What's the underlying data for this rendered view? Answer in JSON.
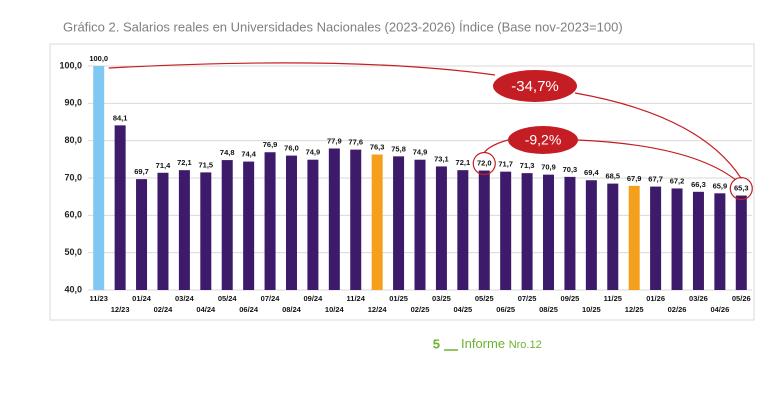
{
  "chart_data": {
    "type": "bar",
    "title": "Gráfico 2. Salarios reales en Universidades Nacionales (2023-2026) Índice (Base nov-2023=100)",
    "categories": [
      "11/23",
      "12/23",
      "01/24",
      "02/24",
      "03/24",
      "04/24",
      "05/24",
      "06/24",
      "07/24",
      "08/24",
      "09/24",
      "10/24",
      "11/24",
      "12/24",
      "01/25",
      "02/25",
      "03/25",
      "04/25",
      "05/25",
      "06/25",
      "07/25",
      "08/25",
      "09/25",
      "10/25",
      "11/25",
      "12/25",
      "01/26",
      "02/26",
      "03/26",
      "04/26",
      "05/26"
    ],
    "values": [
      100.0,
      84.1,
      69.7,
      71.4,
      72.1,
      71.5,
      74.8,
      74.4,
      76.9,
      76.0,
      74.9,
      77.9,
      77.6,
      76.3,
      75.8,
      74.9,
      73.1,
      72.1,
      72.0,
      71.7,
      71.3,
      70.9,
      70.3,
      69.4,
      68.5,
      67.9,
      67.7,
      67.2,
      66.3,
      65.9,
      65.3
    ],
    "value_labels": [
      "100,0",
      "84,1",
      "69,7",
      "71,4",
      "72,1",
      "71,5",
      "74,8",
      "74,4",
      "76,9",
      "76,0",
      "74,9",
      "77,9",
      "77,6",
      "76,3",
      "75,8",
      "74,9",
      "73,1",
      "72,1",
      "72,0",
      "71,7",
      "71,3",
      "70,9",
      "70,3",
      "69,4",
      "68,5",
      "67,9",
      "67,7",
      "67,2",
      "66,3",
      "65,9",
      "65,3"
    ],
    "colors": [
      "#7fc8f4",
      "#3d1a6a",
      "#3d1a6a",
      "#3d1a6a",
      "#3d1a6a",
      "#3d1a6a",
      "#3d1a6a",
      "#3d1a6a",
      "#3d1a6a",
      "#3d1a6a",
      "#3d1a6a",
      "#3d1a6a",
      "#3d1a6a",
      "#f5a01c",
      "#3d1a6a",
      "#3d1a6a",
      "#3d1a6a",
      "#3d1a6a",
      "#3d1a6a",
      "#3d1a6a",
      "#3d1a6a",
      "#3d1a6a",
      "#3d1a6a",
      "#3d1a6a",
      "#3d1a6a",
      "#f5a01c",
      "#3d1a6a",
      "#3d1a6a",
      "#3d1a6a",
      "#3d1a6a",
      "#3d1a6a"
    ],
    "ylim": [
      40,
      100
    ],
    "yticks": [
      {
        "value": 40,
        "label": "40,0"
      },
      {
        "value": 50,
        "label": "50,0"
      },
      {
        "value": 60,
        "label": "60,0"
      },
      {
        "value": 70,
        "label": "70,0"
      },
      {
        "value": 80,
        "label": "80,0"
      },
      {
        "value": 90,
        "label": "90,0"
      },
      {
        "value": 100,
        "label": "100,0"
      }
    ],
    "grid": true,
    "annotations": [
      {
        "text": "-34,7%"
      },
      {
        "text": "-9,2%"
      }
    ]
  },
  "footer": {
    "page": "5",
    "text": "Informe",
    "number": "Nro.12"
  }
}
